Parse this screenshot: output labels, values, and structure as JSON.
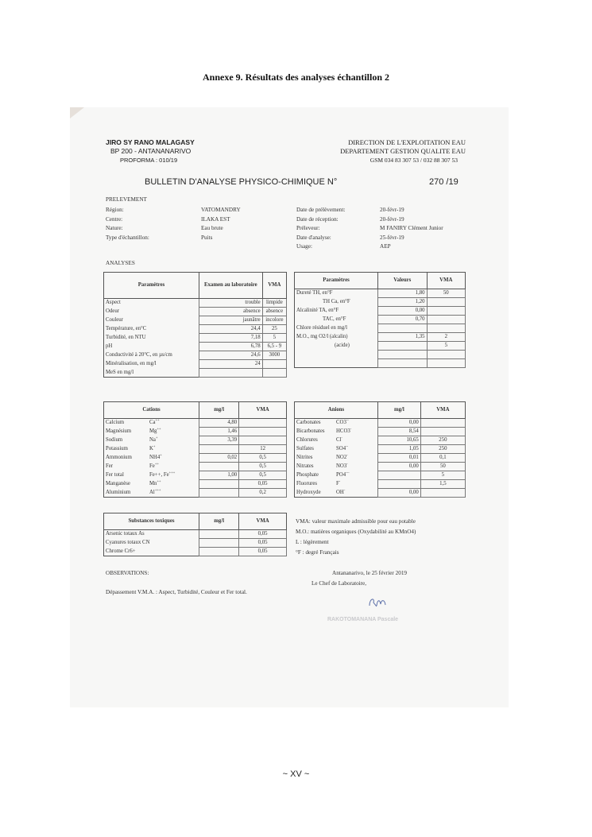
{
  "page_title": "Annexe 9.  Résultats des analyses échantillon 2",
  "header": {
    "org_lines": [
      "JIRO SY RANO MALAGASY",
      "BP 200 - ANTANANARIVO",
      "PROFORMA : 010/19"
    ],
    "dept_lines": [
      "DIRECTION DE L'EXPLOITATION EAU",
      "DEPARTEMENT GESTION QUALITE EAU",
      "GSM 034 83 307 53 / 032 88 307 53"
    ],
    "bulletin_title": "BULLETIN D'ANALYSE PHYSICO-CHIMIQUE N°",
    "bulletin_number": "270 /19"
  },
  "prelevement": {
    "heading": "PRELEVEMENT",
    "left": [
      {
        "label": "Région:",
        "value": "VATOMANDRY"
      },
      {
        "label": "Centre:",
        "value": "ILAKA EST"
      },
      {
        "label": "Nature:",
        "value": "Eau brute"
      },
      {
        "label": "Type d'échantillon:",
        "value": "Puits"
      }
    ],
    "right": [
      {
        "label": "Date de prélèvement:",
        "value": "20-févr-19"
      },
      {
        "label": "Date de réception:",
        "value": "20-févr-19"
      },
      {
        "label": "Préleveur:",
        "value": "M FANIRY Clément Junior"
      },
      {
        "label": "Date d'analyse:",
        "value": "25-févr-19"
      },
      {
        "label": "Usage:",
        "value": "AEP"
      }
    ]
  },
  "analyses_heading": "ANALYSES",
  "tables": {
    "params": {
      "headers": [
        "Paramètres",
        "Examen au laboratoire",
        "VMA"
      ],
      "rows": [
        [
          "Aspect",
          "trouble",
          "limpide"
        ],
        [
          "Odeur",
          "absence",
          "absence"
        ],
        [
          "Couleur",
          "jaunâtre",
          "incolore"
        ],
        [
          "Température, en°C",
          "24,4",
          "25"
        ],
        [
          "Turbidité, en NTU",
          "7,18",
          "5"
        ],
        [
          "pH",
          "6,78",
          "6,5 - 9"
        ],
        [
          "Conductivité à 20°C, en µs/cm",
          "24,6",
          "3000"
        ],
        [
          "Minéralisation, en mg/l",
          "24",
          ""
        ],
        [
          "MeS en mg/l",
          "",
          ""
        ]
      ]
    },
    "params2": {
      "headers": [
        "Paramètres",
        "Valeurs",
        "VMA"
      ],
      "rows": [
        [
          "Dureté     TH, en°F",
          "1,80",
          "50"
        ],
        [
          "TH Ca, en°F",
          "1,20",
          ""
        ],
        [
          "Alcalinité  TA, en°F",
          "0,00",
          ""
        ],
        [
          "TAC, en°F",
          "0,70",
          ""
        ],
        [
          "Chlore résiduel en mg/l",
          "",
          ""
        ],
        [
          "M.O., mg O2/l  (alcalin)",
          "1,35",
          "2"
        ],
        [
          "(acide)",
          "",
          "5"
        ],
        [
          "",
          "",
          ""
        ],
        [
          "",
          "",
          ""
        ]
      ]
    },
    "cations": {
      "headers": [
        "Cations",
        "mg/l",
        "VMA"
      ],
      "rows": [
        [
          "Calcium",
          "Ca",
          "++",
          "4,80",
          ""
        ],
        [
          "Magnésium",
          "Mg",
          "++",
          "1,46",
          ""
        ],
        [
          "Sodium",
          "Na",
          "+",
          "3,39",
          ""
        ],
        [
          "Potassium",
          "K",
          "+",
          "",
          "12"
        ],
        [
          "Ammonium",
          "NH4",
          "+",
          "0,02",
          "0,5"
        ],
        [
          "Fer",
          "Fe",
          "++",
          "",
          "0,5"
        ],
        [
          "Fer total",
          "Fe++, Fe",
          "+++",
          "1,00",
          "0,5"
        ],
        [
          "Manganèse",
          "Mn",
          "++",
          "",
          "0,05"
        ],
        [
          "Aluminium",
          "Al",
          "+++",
          "",
          "0,2"
        ]
      ]
    },
    "anions": {
      "headers": [
        "Anions",
        "mg/l",
        "VMA"
      ],
      "rows": [
        [
          "Carbonates",
          "CO3",
          "--",
          "0,00",
          ""
        ],
        [
          "Bicarbonates",
          "HCO3",
          "-",
          "8,54",
          ""
        ],
        [
          "Chlorures",
          "Cl",
          "-",
          "10,65",
          "250"
        ],
        [
          "Sulfates",
          "SO4",
          "--",
          "1,05",
          "250"
        ],
        [
          "Nitrites",
          "NO2",
          "-",
          "0,01",
          "0,1"
        ],
        [
          "Nitrates",
          "NO3",
          "-",
          "0,00",
          "50"
        ],
        [
          "Phosphate",
          "PO4",
          "---",
          "",
          "5"
        ],
        [
          "Fluorures",
          "F",
          "-",
          "",
          "1,5"
        ],
        [
          "Hydroxyde",
          "OH",
          "-",
          "0,00",
          ""
        ]
      ]
    },
    "toxic": {
      "headers": [
        "Substances toxiques",
        "mg/l",
        "VMA"
      ],
      "rows": [
        [
          "Arsenic totaux  As",
          "",
          "0,05"
        ],
        [
          "Cyanures totaux  CN",
          "",
          "0,05"
        ],
        [
          "Chrome  Cr6+",
          "",
          "0,05"
        ]
      ]
    }
  },
  "legend": [
    "VMA: valeur maximale admissible pour eau potable",
    "M.O.: matières organiques (Oxydabilité au KMnO4)",
    "L : légèrement",
    "°F : degré Français"
  ],
  "observations": {
    "heading": "OBSERVATIONS:",
    "text": "Dépassement V.M.A. : Aspect, Turbidité, Couleur et Fer total."
  },
  "signature": {
    "place_date": "Antananarivo, le 25 février 2019",
    "role": "Le Chef de Laboratoire,",
    "name": "RAKOTOMANANA Pascale"
  },
  "footer": "~ XV ~"
}
